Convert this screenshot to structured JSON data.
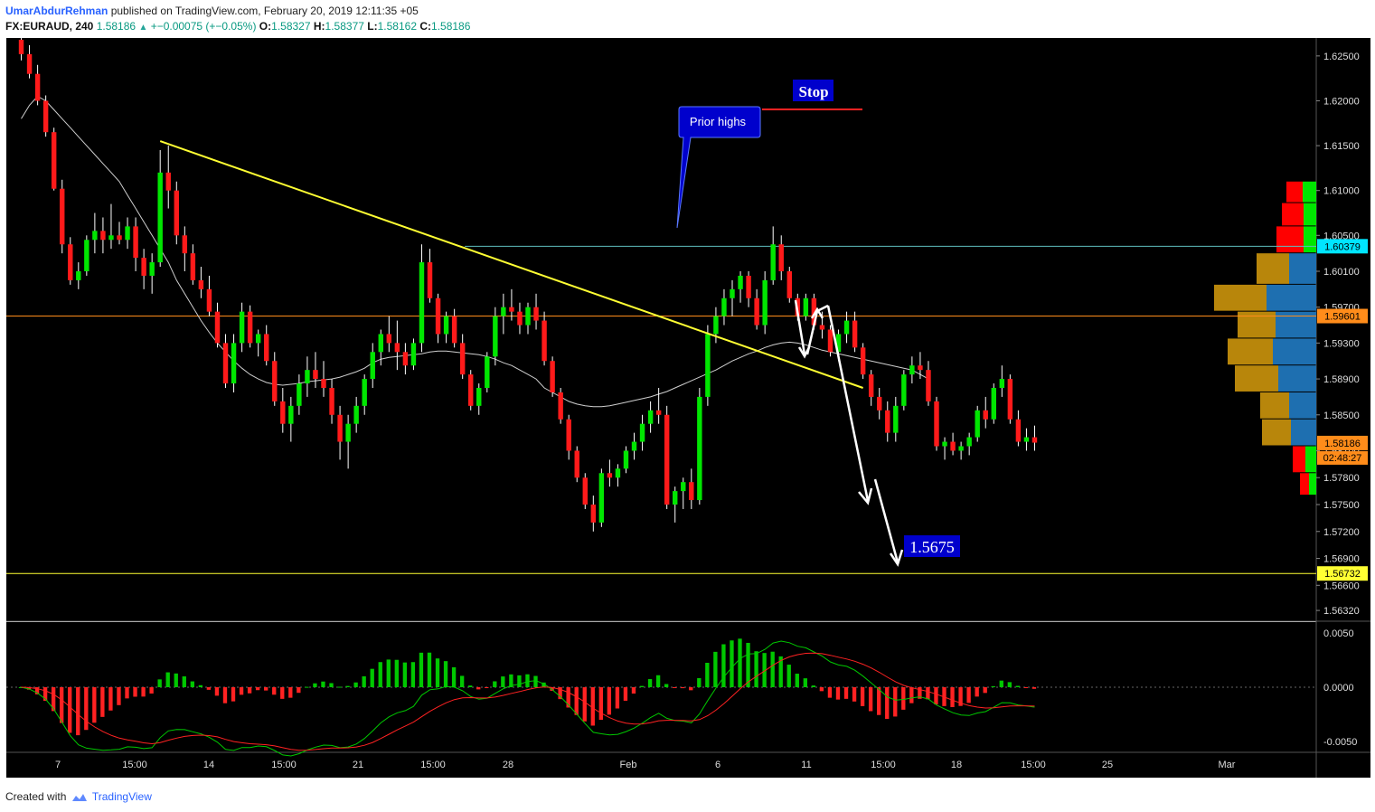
{
  "header": {
    "author": "UmarAbdurRehman",
    "published_text": "published on TradingView.com, February 20, 2019 12:11:35 +05",
    "symbol": "FX:EURAUD, 240",
    "last": "1.58186",
    "change_arrow": "▲",
    "change": "+−0.00075 (+−0.05%)",
    "o_label": "O:",
    "o": "1.58327",
    "h_label": "H:",
    "h": "1.58377",
    "l_label": "L:",
    "l": "1.58162",
    "c_label": "C:",
    "c": "1.58186"
  },
  "footer": {
    "created_with": "Created with",
    "brand": "TradingView",
    "logo_icon": "tradingview-cloud-icon"
  },
  "colors": {
    "background": "#000000",
    "up": "#00e600",
    "down": "#ff1a1a",
    "trendline": "#ffff33",
    "ma": "#cfcfcf",
    "hline_resistance": "#5fbfbf",
    "hline_mid": "#ff8c1a",
    "hline_target": "#ffff33",
    "stop_line": "#ff2222",
    "label_blue": "#0000cc",
    "macd": "#00c800",
    "signal": "#ff2222"
  },
  "chart_data": {
    "type": "candlestick",
    "instrument": "FX:EURAUD",
    "interval": "240",
    "x_ticks": [
      "7",
      "15:00",
      "14",
      "15:00",
      "21",
      "15:00",
      "28",
      "Feb",
      "6",
      "11",
      "15:00",
      "18",
      "15:00",
      "25",
      "Mar"
    ],
    "y_ticks": [
      "1.62500",
      "1.62000",
      "1.61500",
      "1.61000",
      "1.60500",
      "1.60100",
      "1.59700",
      "1.59300",
      "1.58900",
      "1.58500",
      "1.58100",
      "1.57800",
      "1.57500",
      "1.57200",
      "1.56900",
      "1.56600",
      "1.56320"
    ],
    "ylim": [
      1.562,
      1.627
    ],
    "price_labels": [
      {
        "value": 1.60379,
        "text": "1.60379",
        "color": "#00e5ff"
      },
      {
        "value": 1.59601,
        "text": "1.59601",
        "color": "#ff8c1a"
      },
      {
        "value": 1.58186,
        "text": "1.58186",
        "color": "#ff8c1a"
      },
      {
        "value": 1.56732,
        "text": "1.56732",
        "color": "#ffff33"
      }
    ],
    "countdown": "02:48:27",
    "horizontal_lines": [
      {
        "value": 1.60379,
        "color": "#5fbfbf",
        "from": 0.35
      },
      {
        "value": 1.59601,
        "color": "#ff8c1a",
        "from": 0
      },
      {
        "value": 1.56732,
        "color": "#ffff33",
        "from": 0
      }
    ],
    "trendline": {
      "from": {
        "i": 17,
        "p": 1.6155
      },
      "to": {
        "i": 103,
        "p": 1.588
      }
    },
    "annotations": [
      {
        "text": "Prior highs",
        "style": "callout"
      },
      {
        "text": "Stop",
        "style": "box"
      },
      {
        "text": "1.5675",
        "style": "box"
      }
    ],
    "candles": [
      [
        1.6268,
        1.627,
        1.6245,
        1.6252
      ],
      [
        1.6252,
        1.6262,
        1.6225,
        1.623
      ],
      [
        1.623,
        1.624,
        1.6195,
        1.62
      ],
      [
        1.62,
        1.6206,
        1.616,
        1.6165
      ],
      [
        1.6165,
        1.617,
        1.61,
        1.6102
      ],
      [
        1.6102,
        1.6112,
        1.603,
        1.604
      ],
      [
        1.604,
        1.6048,
        1.5995,
        1.6
      ],
      [
        1.6,
        1.602,
        1.599,
        1.601
      ],
      [
        1.601,
        1.605,
        1.6005,
        1.6045
      ],
      [
        1.6045,
        1.6075,
        1.603,
        1.6055
      ],
      [
        1.6055,
        1.607,
        1.603,
        1.6045
      ],
      [
        1.6045,
        1.6085,
        1.6035,
        1.605
      ],
      [
        1.605,
        1.6065,
        1.604,
        1.6045
      ],
      [
        1.6045,
        1.607,
        1.6035,
        1.606
      ],
      [
        1.606,
        1.607,
        1.601,
        1.6025
      ],
      [
        1.6025,
        1.6035,
        1.599,
        1.6005
      ],
      [
        1.6005,
        1.603,
        1.5985,
        1.602
      ],
      [
        1.602,
        1.6145,
        1.6015,
        1.612
      ],
      [
        1.612,
        1.615,
        1.608,
        1.61
      ],
      [
        1.61,
        1.611,
        1.604,
        1.605
      ],
      [
        1.605,
        1.606,
        1.601,
        1.603
      ],
      [
        1.603,
        1.604,
        1.5995,
        1.6
      ],
      [
        1.6,
        1.6015,
        1.598,
        1.599
      ],
      [
        1.599,
        1.6005,
        1.596,
        1.5965
      ],
      [
        1.5965,
        1.5975,
        1.5925,
        1.593
      ],
      [
        1.593,
        1.594,
        1.588,
        1.5885
      ],
      [
        1.5885,
        1.594,
        1.5875,
        1.593
      ],
      [
        1.593,
        1.5975,
        1.592,
        1.5965
      ],
      [
        1.5965,
        1.5972,
        1.5925,
        1.593
      ],
      [
        1.593,
        1.5945,
        1.5915,
        1.594
      ],
      [
        1.594,
        1.595,
        1.5905,
        1.591
      ],
      [
        1.591,
        1.592,
        1.586,
        1.5865
      ],
      [
        1.5865,
        1.588,
        1.583,
        1.584
      ],
      [
        1.584,
        1.587,
        1.582,
        1.586
      ],
      [
        1.586,
        1.5895,
        1.585,
        1.5885
      ],
      [
        1.5885,
        1.5915,
        1.587,
        1.59
      ],
      [
        1.59,
        1.592,
        1.588,
        1.589
      ],
      [
        1.589,
        1.591,
        1.587,
        1.588
      ],
      [
        1.588,
        1.589,
        1.584,
        1.585
      ],
      [
        1.585,
        1.586,
        1.58,
        1.582
      ],
      [
        1.582,
        1.585,
        1.579,
        1.584
      ],
      [
        1.584,
        1.587,
        1.583,
        1.586
      ],
      [
        1.586,
        1.5895,
        1.585,
        1.589
      ],
      [
        1.589,
        1.593,
        1.588,
        1.592
      ],
      [
        1.592,
        1.5945,
        1.5905,
        1.594
      ],
      [
        1.594,
        1.596,
        1.592,
        1.593
      ],
      [
        1.593,
        1.5955,
        1.59,
        1.592
      ],
      [
        1.592,
        1.593,
        1.5895,
        1.5905
      ],
      [
        1.5905,
        1.5935,
        1.59,
        1.593
      ],
      [
        1.593,
        1.604,
        1.592,
        1.602
      ],
      [
        1.602,
        1.6035,
        1.5975,
        1.598
      ],
      [
        1.598,
        1.5985,
        1.593,
        1.594
      ],
      [
        1.594,
        1.5965,
        1.593,
        1.596
      ],
      [
        1.596,
        1.5968,
        1.5925,
        1.593
      ],
      [
        1.593,
        1.594,
        1.589,
        1.5895
      ],
      [
        1.5895,
        1.59,
        1.5855,
        1.586
      ],
      [
        1.586,
        1.5885,
        1.585,
        1.588
      ],
      [
        1.588,
        1.592,
        1.5875,
        1.5915
      ],
      [
        1.5915,
        1.597,
        1.5905,
        1.596
      ],
      [
        1.596,
        1.5985,
        1.594,
        1.597
      ],
      [
        1.597,
        1.599,
        1.5955,
        1.5965
      ],
      [
        1.5965,
        1.5975,
        1.594,
        1.595
      ],
      [
        1.595,
        1.5975,
        1.594,
        1.597
      ],
      [
        1.597,
        1.5985,
        1.5945,
        1.5955
      ],
      [
        1.5955,
        1.5965,
        1.5905,
        1.591
      ],
      [
        1.591,
        1.5915,
        1.587,
        1.5875
      ],
      [
        1.5875,
        1.588,
        1.584,
        1.5845
      ],
      [
        1.5845,
        1.585,
        1.58,
        1.581
      ],
      [
        1.581,
        1.5815,
        1.5775,
        1.578
      ],
      [
        1.578,
        1.5785,
        1.5745,
        1.575
      ],
      [
        1.575,
        1.576,
        1.572,
        1.573
      ],
      [
        1.573,
        1.579,
        1.5725,
        1.5785
      ],
      [
        1.5785,
        1.58,
        1.577,
        1.578
      ],
      [
        1.578,
        1.5795,
        1.577,
        1.579
      ],
      [
        1.579,
        1.5815,
        1.5785,
        1.581
      ],
      [
        1.581,
        1.583,
        1.58,
        1.582
      ],
      [
        1.582,
        1.585,
        1.581,
        1.584
      ],
      [
        1.584,
        1.5865,
        1.583,
        1.5855
      ],
      [
        1.5855,
        1.588,
        1.584,
        1.585
      ],
      [
        1.585,
        1.586,
        1.5745,
        1.575
      ],
      [
        1.575,
        1.577,
        1.573,
        1.5765
      ],
      [
        1.5765,
        1.578,
        1.5745,
        1.5775
      ],
      [
        1.5775,
        1.579,
        1.5745,
        1.5755
      ],
      [
        1.5755,
        1.588,
        1.575,
        1.587
      ],
      [
        1.587,
        1.595,
        1.586,
        1.594
      ],
      [
        1.594,
        1.597,
        1.593,
        1.596
      ],
      [
        1.596,
        1.599,
        1.595,
        1.598
      ],
      [
        1.598,
        1.6,
        1.596,
        1.599
      ],
      [
        1.599,
        1.601,
        1.5975,
        1.6005
      ],
      [
        1.6005,
        1.601,
        1.597,
        1.598
      ],
      [
        1.598,
        1.599,
        1.5945,
        1.595
      ],
      [
        1.595,
        1.601,
        1.594,
        1.6
      ],
      [
        1.6,
        1.606,
        1.5995,
        1.604
      ],
      [
        1.604,
        1.605,
        1.6,
        1.601
      ],
      [
        1.601,
        1.6015,
        1.5975,
        1.598
      ],
      [
        1.598,
        1.5985,
        1.5955,
        1.596
      ],
      [
        1.596,
        1.5985,
        1.5955,
        1.598
      ],
      [
        1.598,
        1.5985,
        1.5945,
        1.595
      ],
      [
        1.595,
        1.5965,
        1.5935,
        1.5945
      ],
      [
        1.5945,
        1.595,
        1.5915,
        1.592
      ],
      [
        1.592,
        1.5945,
        1.591,
        1.594
      ],
      [
        1.594,
        1.5965,
        1.593,
        1.5955
      ],
      [
        1.5955,
        1.5965,
        1.592,
        1.5925
      ],
      [
        1.5925,
        1.593,
        1.589,
        1.5895
      ],
      [
        1.5895,
        1.59,
        1.586,
        1.587
      ],
      [
        1.587,
        1.588,
        1.5845,
        1.5855
      ],
      [
        1.5855,
        1.5865,
        1.582,
        1.583
      ],
      [
        1.583,
        1.587,
        1.582,
        1.586
      ],
      [
        1.586,
        1.59,
        1.5855,
        1.5895
      ],
      [
        1.5895,
        1.5915,
        1.5885,
        1.5905
      ],
      [
        1.5905,
        1.592,
        1.589,
        1.59
      ],
      [
        1.59,
        1.591,
        1.586,
        1.5865
      ],
      [
        1.5865,
        1.587,
        1.581,
        1.5815
      ],
      [
        1.5815,
        1.5825,
        1.58,
        1.582
      ],
      [
        1.582,
        1.583,
        1.5805,
        1.581
      ],
      [
        1.581,
        1.582,
        1.58,
        1.5815
      ],
      [
        1.5815,
        1.583,
        1.5805,
        1.5825
      ],
      [
        1.5825,
        1.586,
        1.582,
        1.5855
      ],
      [
        1.5855,
        1.587,
        1.5835,
        1.5845
      ],
      [
        1.5845,
        1.5885,
        1.584,
        1.588
      ],
      [
        1.588,
        1.5905,
        1.587,
        1.589
      ],
      [
        1.589,
        1.5895,
        1.584,
        1.5845
      ],
      [
        1.5845,
        1.5855,
        1.5815,
        1.582
      ],
      [
        1.582,
        1.5835,
        1.581,
        1.5825
      ],
      [
        1.5825,
        1.5838,
        1.581,
        1.5819
      ]
    ],
    "ma": [
      1.618,
      1.6195,
      1.6205,
      1.62,
      1.619,
      1.618,
      1.617,
      1.616,
      1.615,
      1.614,
      1.613,
      1.612,
      1.611,
      1.6095,
      1.608,
      1.6065,
      1.605,
      1.6035,
      1.602,
      1.6,
      1.5985,
      1.597,
      1.5955,
      1.5942,
      1.593,
      1.592,
      1.591,
      1.5902,
      1.5895,
      1.589,
      1.5886,
      1.5884,
      1.5883,
      1.5884,
      1.5885,
      1.5887,
      1.5888,
      1.5889,
      1.589,
      1.5892,
      1.5895,
      1.5898,
      1.5902,
      1.5908,
      1.5912,
      1.5914,
      1.5915,
      1.5916,
      1.5917,
      1.5918,
      1.592,
      1.5921,
      1.5921,
      1.592,
      1.5919,
      1.5918,
      1.5917,
      1.5915,
      1.5912,
      1.5908,
      1.5905,
      1.59,
      1.5895,
      1.589,
      1.588,
      1.5875,
      1.587,
      1.5865,
      1.5862,
      1.586,
      1.5859,
      1.5859,
      1.586,
      1.5862,
      1.5864,
      1.5866,
      1.5868,
      1.587,
      1.5873,
      1.5876,
      1.588,
      1.5884,
      1.5888,
      1.5892,
      1.5896,
      1.59,
      1.5905,
      1.591,
      1.5914,
      1.5918,
      1.5921,
      1.5925,
      1.5928,
      1.593,
      1.5931,
      1.593,
      1.5928,
      1.5925,
      1.5922,
      1.592,
      1.5918,
      1.5916,
      1.5914,
      1.5912,
      1.591,
      1.5908,
      1.5906,
      1.5904,
      1.5902,
      1.59,
      1.5895,
      1.589
    ],
    "ma_start_index": 0,
    "macd_ylim": [
      -0.006,
      0.006
    ],
    "macd_ticks": [
      "0.0050",
      "0.0000",
      "-0.0050"
    ],
    "macd_x_ticks": [
      "7",
      "15:00",
      "14",
      "15:00",
      "21",
      "15:00",
      "28",
      "Feb",
      "6",
      "11",
      "15:00",
      "18",
      "15:00",
      "25",
      "Mar"
    ]
  }
}
